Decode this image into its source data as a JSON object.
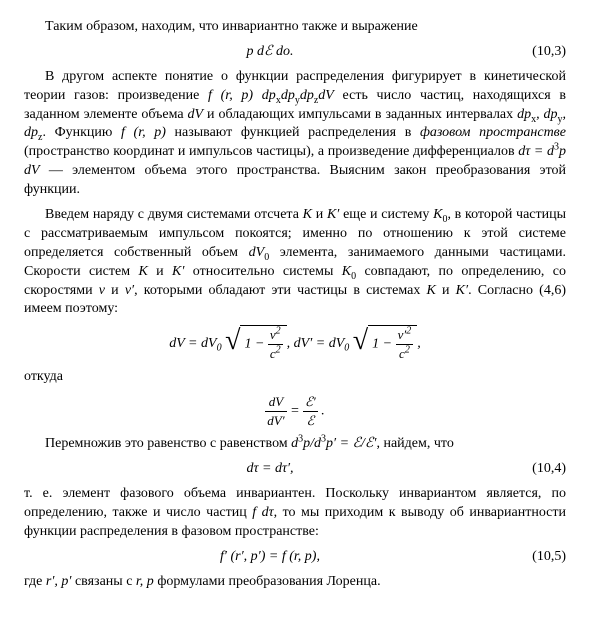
{
  "p1": "Таким образом, находим, что инвариантно также и выражение",
  "eq1": {
    "body": "p dℰ do.",
    "num": "(10,3)"
  },
  "p2_a": "В другом аспекте понятие о функции распределения фигурирует в кинетической теории газов: произведение ",
  "p2_b": "f (r, p) dp",
  "p2_c": "dp",
  "p2_d": "dp",
  "p2_e": "dV",
  "p2_f": " есть число частиц, находящихся в заданном элементе объема ",
  "p2_g": "dV",
  "p2_h": " и обладающих импульсами в заданных интервалах ",
  "p2_i": "dp",
  "p2_j": ", dp",
  "p2_k": ", dp",
  "p2_l": ". Функцию ",
  "p2_m": "f (r, p)",
  "p2_n": " называют функцией распределения в ",
  "p2_o": "фазовом пространстве",
  "p2_p": " (пространство координат и импульсов частицы), а произведение дифференциалов ",
  "p2_q": "dτ = d",
  "p2_r": "p dV",
  "p2_s": " — элементом объема этого пространства. Выясним закон преобразования этой функции.",
  "p3_a": "Введем наряду с двумя системами отсчета ",
  "p3_b": "K",
  "p3_c": " и ",
  "p3_d": "K′",
  "p3_e": " еще и систему ",
  "p3_f": "K",
  "p3_g": ", в которой частицы с рассматриваемым импульсом покоятся; именно по отношению к этой системе определяется собственный объем ",
  "p3_h": "dV",
  "p3_i": " элемента, занимаемого данными частицами. Скорости систем ",
  "p3_j": "K",
  "p3_k": " и ",
  "p3_l": "K′",
  "p3_m": " относительно системы ",
  "p3_n": "K",
  "p3_o": " совпадают, по определению, со скоростями ",
  "p3_p": "v",
  "p3_q": " и ",
  "p3_r": "v′",
  "p3_s": ", которыми обладают эти частицы в системах ",
  "p3_t": "K",
  "p3_u": " и ",
  "p3_v": "K′",
  "p3_w": ". Согласно (4,6) имеем поэтому:",
  "eq2": {
    "lhs1": "dV = dV",
    "rad1_a": "1 −",
    "rad1_num": "v",
    "rad1_den": "c",
    "mid": ",   dV′ = dV",
    "rad2_num": "v′",
    "rad2_den": "c",
    "tail": ","
  },
  "p4": "откуда",
  "eq3": {
    "num": "dV",
    "den": "dV′",
    "eq": " = ",
    "num2": "ℰ′",
    "den2": "ℰ",
    "tail": " ."
  },
  "p5_a": "Перемножив это равенство с равенством ",
  "p5_b": "d",
  "p5_c": "p/d",
  "p5_d": "p′ = ℰ/ℰ′",
  "p5_e": ", найдем, что",
  "eq4": {
    "body": "dτ = dτ′,",
    "num": "(10,4)"
  },
  "p6_a": "т. е. элемент фазового объема инвариантен. Поскольку инвариантом является, по определению, также и число частиц ",
  "p6_b": "f dτ",
  "p6_c": ", то мы приходим к выводу об инвариантности функции распределения в фазовом пространстве:",
  "eq5": {
    "body": "f′ (r′, p′) = f (r, p),",
    "num": "(10,5)"
  },
  "p7_a": "где ",
  "p7_b": "r′, p′",
  "p7_c": " связаны с ",
  "p7_d": "r, p",
  "p7_e": " формулами преобразования Лоренца."
}
